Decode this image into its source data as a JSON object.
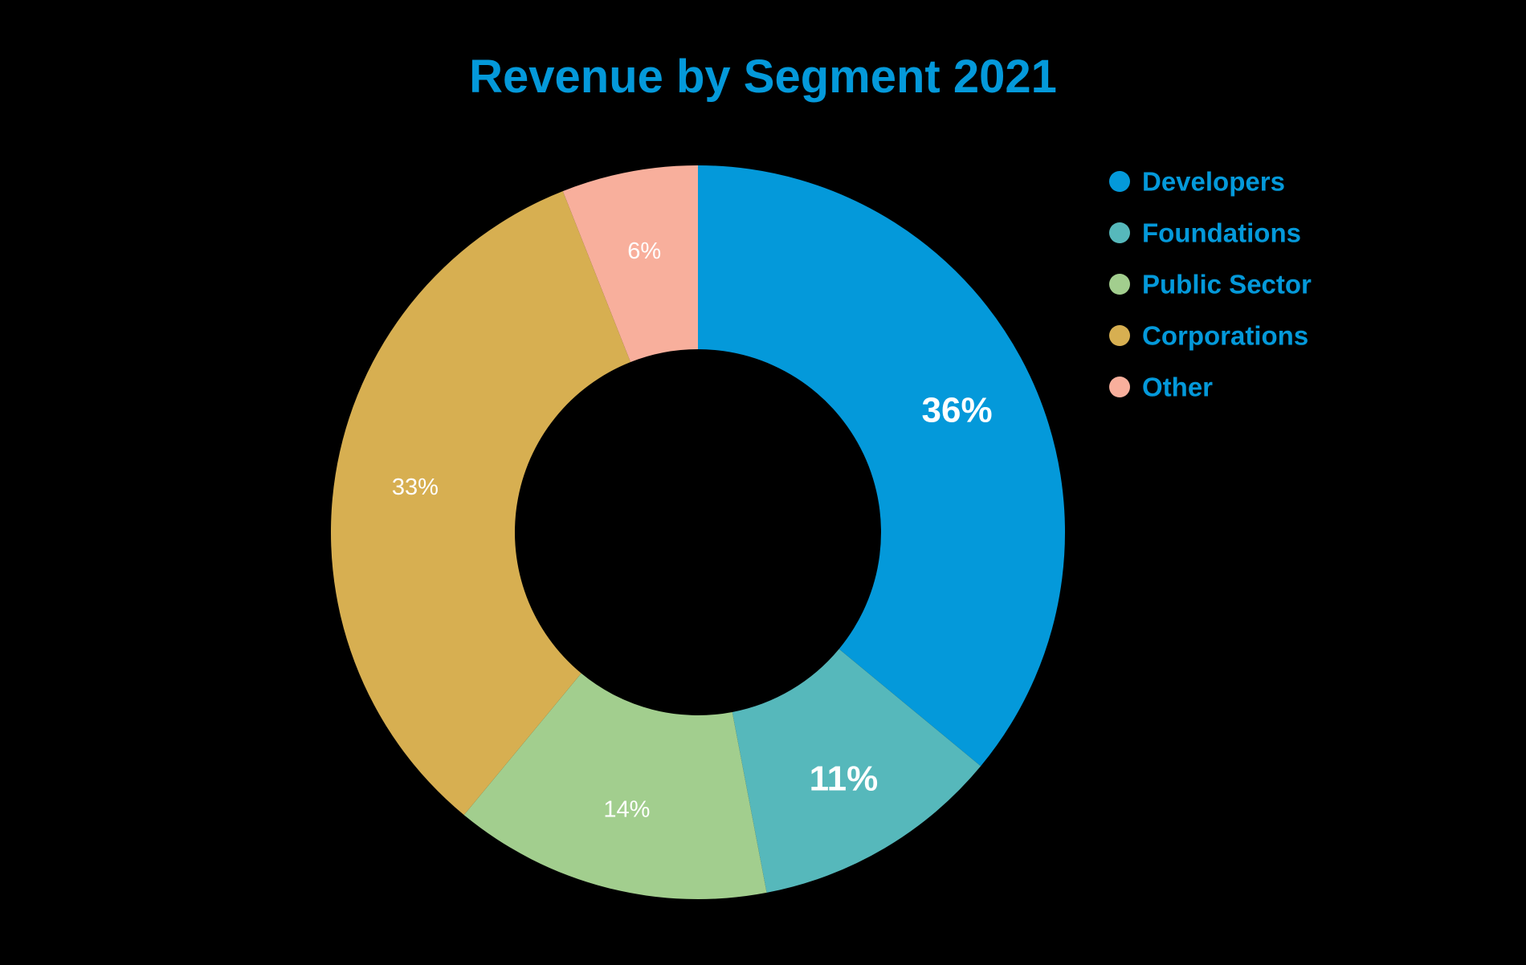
{
  "chart_data": {
    "type": "pie",
    "variant": "donut",
    "title": "Revenue by Segment 2021",
    "title_color": "#0499DA",
    "legend_position": "right",
    "legend_text_color": "#0499DA",
    "background": "#000000",
    "slices": [
      {
        "name": "Developers",
        "value": 36,
        "label": "36%",
        "color": "#0499DA",
        "label_style": "big"
      },
      {
        "name": "Foundations",
        "value": 11,
        "label": "11%",
        "color": "#56B8BB",
        "label_style": "big"
      },
      {
        "name": "Public Sector",
        "value": 14,
        "label": "14%",
        "color": "#A2CE8E",
        "label_style": "small"
      },
      {
        "name": "Corporations",
        "value": 33,
        "label": "33%",
        "color": "#D7AF51",
        "label_style": "small"
      },
      {
        "name": "Other",
        "value": 6,
        "label": "6%",
        "color": "#F8AF9C",
        "label_style": "small"
      }
    ]
  }
}
